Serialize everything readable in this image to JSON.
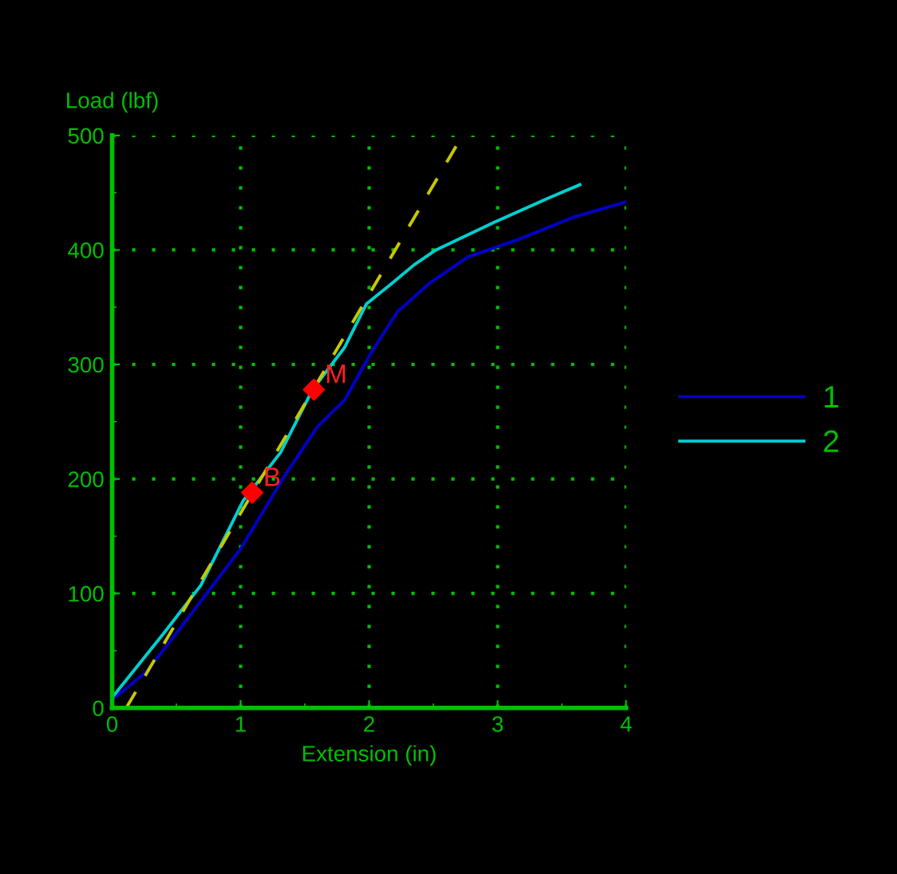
{
  "chart_data": {
    "type": "line",
    "xlabel": "Extension (in)",
    "ylabel": "Load (lbf)",
    "xlim": [
      0,
      4
    ],
    "ylim": [
      0,
      500
    ],
    "xticks": [
      0,
      1,
      2,
      3,
      4
    ],
    "yticks": [
      0,
      100,
      200,
      300,
      400,
      500
    ],
    "grid": true,
    "legend": "right",
    "line_style": "solid",
    "marker": "none",
    "series": [
      {
        "name": "1",
        "color": "#0000c8",
        "x": [
          0,
          0.27,
          0.56,
          1.0,
          1.35,
          1.6,
          1.81,
          2.02,
          2.22,
          2.47,
          2.77,
          3.18,
          3.6,
          4.0
        ],
        "values": [
          7,
          32,
          74,
          139,
          204,
          246,
          269,
          311,
          346,
          371,
          394,
          410,
          429,
          442
        ]
      },
      {
        "name": "2",
        "color": "#00d0d0",
        "x": [
          0,
          0.4,
          0.69,
          1.02,
          1.31,
          1.56,
          1.81,
          1.98,
          2.18,
          2.35,
          2.52,
          2.97,
          3.39,
          3.64
        ],
        "values": [
          9,
          65,
          107,
          181,
          223,
          278,
          315,
          353,
          371,
          387,
          400,
          424,
          445,
          457
        ]
      },
      {
        "type": "line",
        "color": "#c8c800",
        "line_style": "dashed",
        "x": [
          0.11,
          2.7
        ],
        "values": [
          0,
          495
        ]
      },
      {
        "type": "scatter",
        "color": "#ff0000",
        "marker": "diamond",
        "x": [
          1.09,
          1.57
        ],
        "values": [
          188,
          278
        ]
      }
    ],
    "annotations": [
      {
        "text": "B",
        "x": 1.09,
        "y": 188
      },
      {
        "text": "M",
        "x": 1.57,
        "y": 278
      }
    ]
  }
}
